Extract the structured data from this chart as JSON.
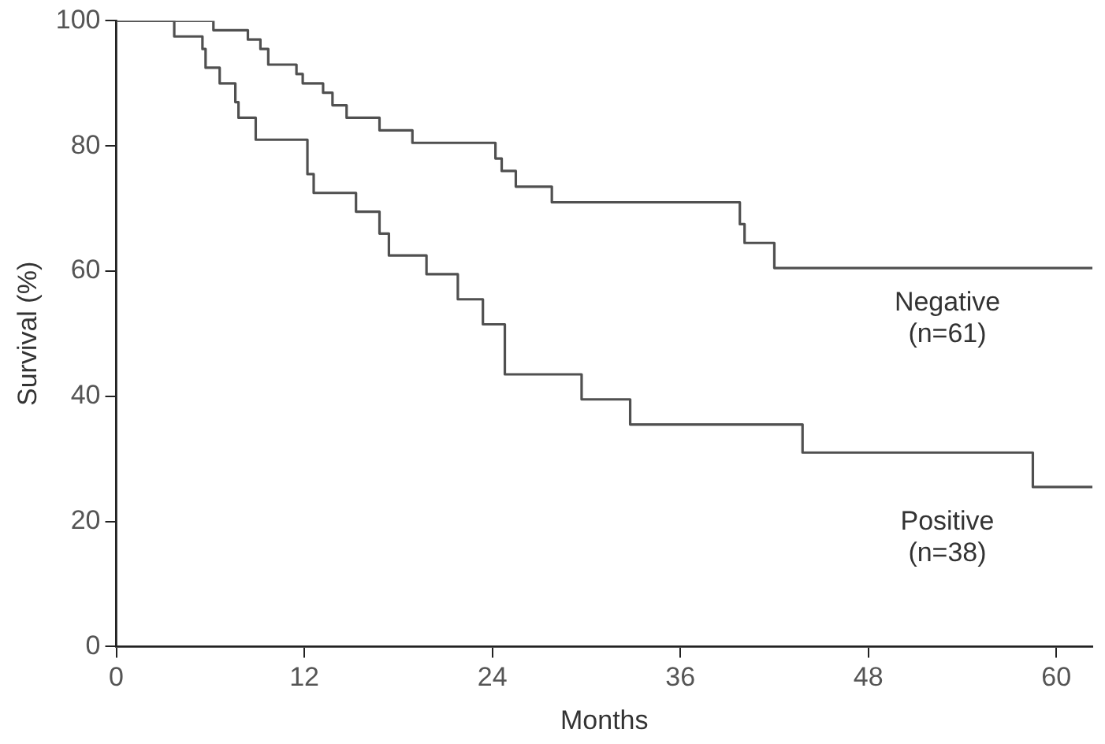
{
  "chart_data": {
    "type": "step",
    "xlabel": "Months",
    "ylabel": "Survival (%)",
    "xlim": [
      0,
      62.3
    ],
    "xticks": [
      0,
      12,
      24,
      36,
      48,
      60
    ],
    "ylim": [
      0,
      100
    ],
    "yticks": [
      0,
      20,
      40,
      60,
      80,
      100
    ],
    "grid": false,
    "legend": false,
    "marker": "none",
    "line_style": "solid",
    "series": [
      {
        "name": "Negative (n=61)",
        "color": "#505050",
        "x": [
          0,
          6.2,
          8.4,
          9.2,
          9.7,
          11.5,
          11.9,
          13.2,
          13.8,
          14.7,
          16.8,
          18.9,
          24.2,
          24.6,
          25.5,
          27.8,
          39.8,
          40.1,
          42,
          62.3
        ],
        "values": [
          100,
          98.5,
          97,
          95.5,
          93,
          91.5,
          90,
          88.5,
          86.5,
          84.5,
          82.5,
          80.5,
          78,
          76,
          73.5,
          71,
          67.5,
          64.5,
          60.5,
          60.5
        ]
      },
      {
        "name": "Positive (n=38)",
        "color": "#505050",
        "x": [
          0,
          3.7,
          5.5,
          5.7,
          6.6,
          7.6,
          7.8,
          8.9,
          12.2,
          12.6,
          15.3,
          16.8,
          17.4,
          19.8,
          21.8,
          23.4,
          24.8,
          29.7,
          32.8,
          43.8,
          58.5,
          62.3
        ],
        "values": [
          100,
          97.5,
          95.5,
          92.5,
          90,
          87,
          84.5,
          81,
          75.5,
          72.5,
          69.5,
          66,
          62.5,
          59.5,
          55.5,
          51.5,
          43.5,
          39.5,
          35.5,
          31,
          25.5,
          25.5
        ]
      }
    ]
  }
}
